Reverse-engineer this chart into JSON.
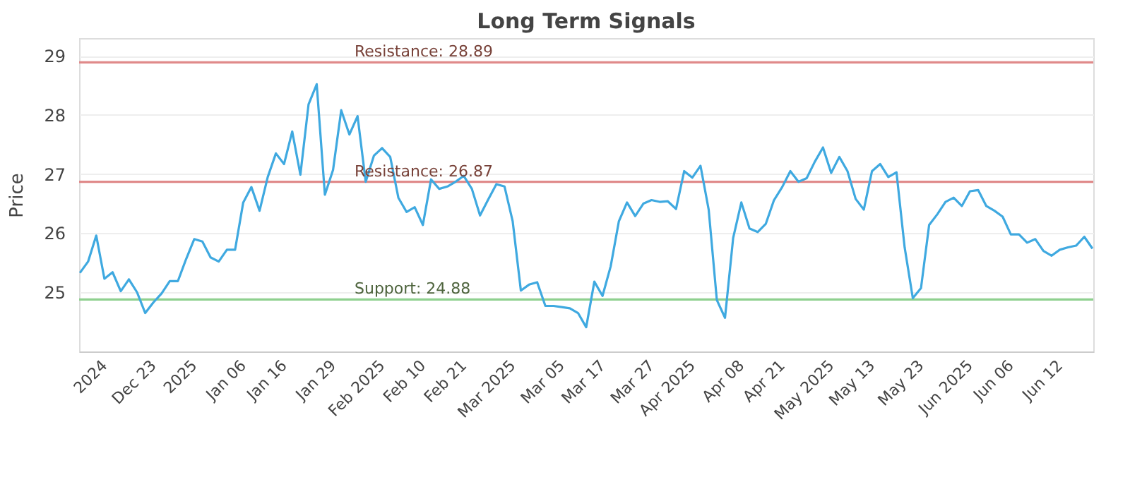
{
  "chart_data": {
    "type": "line",
    "title": "Long Term Signals",
    "ylabel": "Price",
    "categories": [
      null,
      null,
      null,
      "2024",
      null,
      null,
      null,
      null,
      null,
      "Dec 23",
      null,
      null,
      null,
      null,
      "2025",
      null,
      null,
      null,
      null,
      null,
      "Jan 06",
      null,
      null,
      null,
      null,
      "Jan 16",
      null,
      null,
      null,
      null,
      null,
      "Jan 29",
      null,
      null,
      null,
      null,
      null,
      "Feb 2025",
      null,
      null,
      null,
      null,
      "Feb 10",
      null,
      null,
      null,
      null,
      "Feb 21",
      null,
      null,
      null,
      null,
      null,
      "Mar 2025",
      null,
      null,
      null,
      null,
      null,
      "Mar 05",
      null,
      null,
      null,
      null,
      "Mar 17",
      null,
      null,
      null,
      null,
      null,
      "Mar 27",
      null,
      null,
      null,
      null,
      "Apr 2025",
      null,
      null,
      null,
      null,
      null,
      "Apr 08",
      null,
      null,
      null,
      null,
      "Apr 21",
      null,
      null,
      null,
      null,
      null,
      "May 2025",
      null,
      null,
      null,
      null,
      "May 13",
      null,
      null,
      null,
      null,
      null,
      "May 23",
      null,
      null,
      null,
      null,
      null,
      "Jun 2025",
      null,
      null,
      null,
      null,
      "Jun 06",
      null,
      null,
      null,
      null,
      null,
      "Jun 12",
      null,
      null,
      null,
      null
    ],
    "series": [
      {
        "color": "#3fa9e0",
        "values": [
          25.33,
          25.52,
          25.96,
          25.23,
          25.34,
          25.02,
          25.22,
          25.0,
          24.65,
          24.83,
          24.98,
          25.19,
          25.19,
          25.56,
          25.9,
          25.86,
          25.59,
          25.52,
          25.72,
          25.72,
          26.52,
          26.78,
          26.38,
          26.95,
          27.35,
          27.17,
          27.72,
          26.99,
          28.18,
          28.52,
          26.65,
          27.07,
          28.08,
          27.67,
          27.98,
          26.87,
          27.31,
          27.44,
          27.29,
          26.6,
          26.36,
          26.44,
          26.14,
          26.91,
          26.75,
          26.79,
          26.87,
          26.97,
          26.75,
          26.3,
          26.57,
          26.83,
          26.79,
          26.2,
          25.03,
          25.13,
          25.17,
          24.77,
          24.77,
          24.75,
          24.73,
          24.65,
          24.41,
          25.18,
          24.94,
          25.44,
          26.2,
          26.52,
          26.29,
          26.5,
          26.56,
          26.53,
          26.54,
          26.41,
          27.05,
          26.94,
          27.14,
          26.4,
          24.87,
          24.57,
          25.92,
          26.52,
          26.08,
          26.02,
          26.16,
          26.56,
          26.78,
          27.05,
          26.87,
          26.93,
          27.21,
          27.45,
          27.02,
          27.29,
          27.05,
          26.58,
          26.4,
          27.05,
          27.17,
          26.95,
          27.03,
          25.76,
          24.9,
          25.07,
          26.14,
          26.32,
          26.53,
          26.6,
          26.46,
          26.71,
          26.73,
          26.46,
          26.38,
          26.28,
          25.98,
          25.98,
          25.84,
          25.9,
          25.7,
          25.62,
          25.72,
          25.76,
          25.79,
          25.94,
          25.74
        ]
      }
    ],
    "ylim": [
      24,
      29.3
    ],
    "yticks": [
      25,
      26,
      27,
      28,
      29
    ],
    "grid": "y",
    "line_style": "solid",
    "ref_lines": [
      {
        "axis": "y",
        "value": 28.89,
        "label": "Resistance: 28.89",
        "color": "#e08a8a"
      },
      {
        "axis": "y",
        "value": 26.87,
        "label": "Resistance: 26.87",
        "color": "#e08a8a"
      },
      {
        "axis": "y",
        "value": 24.88,
        "label": "Support: 24.88",
        "color": "#8fd08f"
      }
    ]
  }
}
